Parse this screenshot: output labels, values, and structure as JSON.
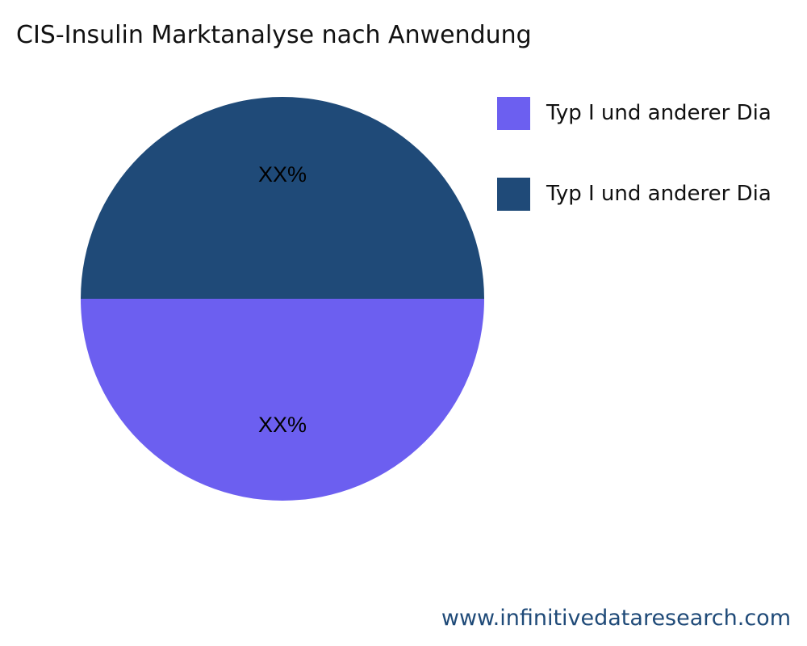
{
  "chart_data": {
    "type": "pie",
    "title": "CIS-Insulin Marktanalyse nach Anwendung",
    "slices": [
      {
        "name": "Typ I und anderer Dia",
        "value": 50,
        "label": "XX%",
        "color": "#6c5ff0"
      },
      {
        "name": "Typ I und anderer Dia",
        "value": 50,
        "label": "XX%",
        "color": "#1f4a78"
      }
    ],
    "legend_position": "right"
  },
  "footer": "www.infinitivedataresearch.com"
}
